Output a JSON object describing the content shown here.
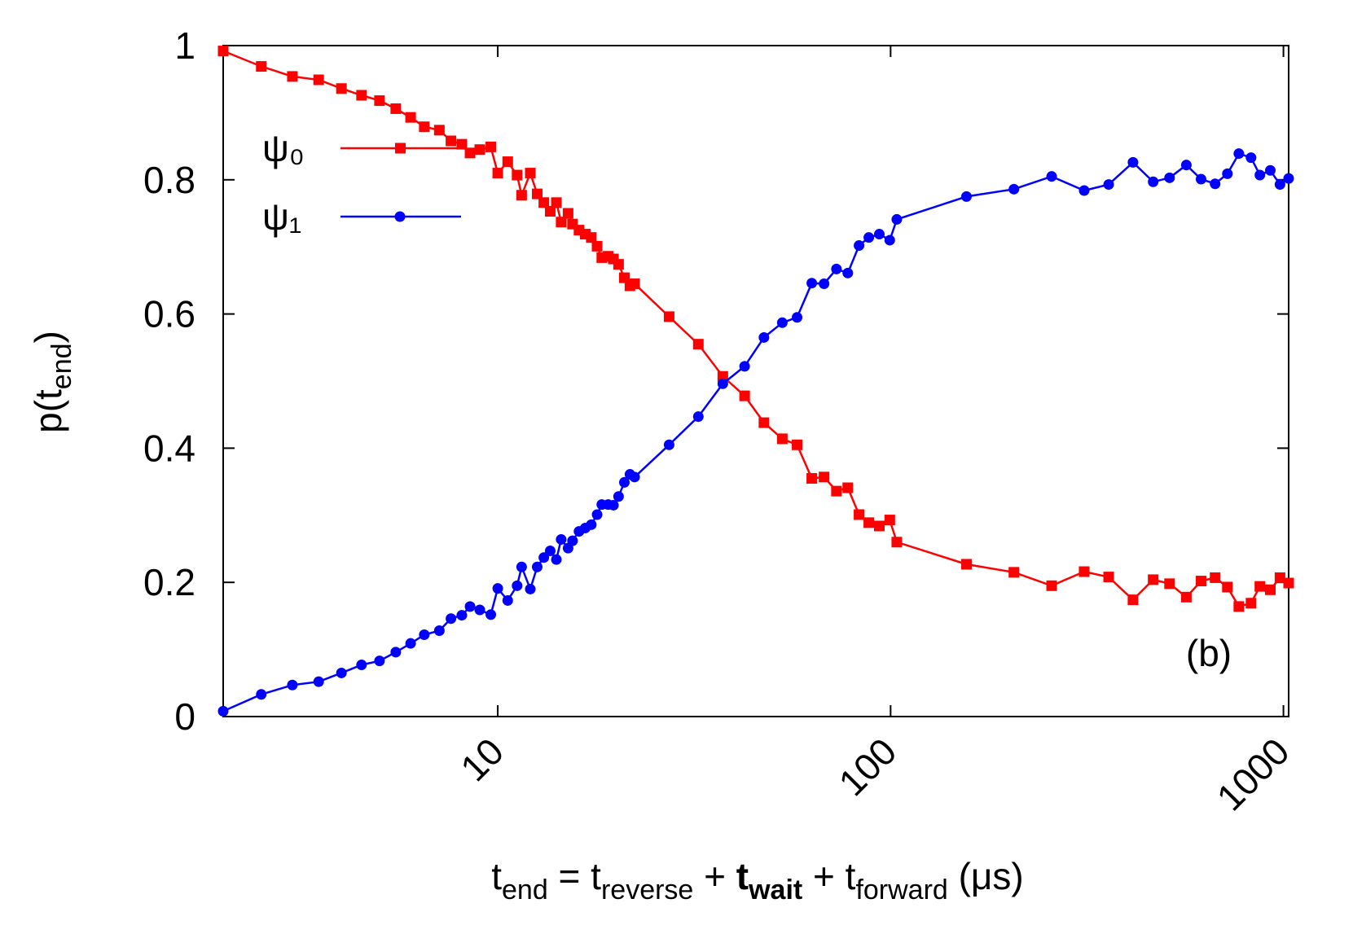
{
  "chart_data": {
    "type": "line",
    "xlabel": [
      {
        "text": "t"
      },
      {
        "text": "end",
        "sub": true
      },
      {
        "text": " = t"
      },
      {
        "text": "reverse",
        "sub": true
      },
      {
        "text": " + "
      },
      {
        "text": "t",
        "bold": true
      },
      {
        "text": "wait",
        "sub": true,
        "bold": true
      },
      {
        "text": " + t"
      },
      {
        "text": "forward",
        "sub": true
      },
      {
        "text": " (μs)"
      }
    ],
    "ylabel": [
      {
        "text": "p(t"
      },
      {
        "text": "end",
        "sub": true
      },
      {
        "text": ")"
      }
    ],
    "annotation": "(b)",
    "xscale": "log",
    "xlim": [
      2,
      1031
    ],
    "xticks": [
      10,
      100,
      1000
    ],
    "ylim": [
      0,
      1
    ],
    "yticks": [
      0,
      0.2,
      0.4,
      0.6,
      0.8,
      1
    ],
    "legend": "upper left",
    "x": [
      2,
      2.5,
      3,
      3.5,
      4,
      4.5,
      5,
      5.5,
      6,
      6.5,
      7.1,
      7.6,
      8.1,
      8.5,
      9,
      9.6,
      10,
      10.6,
      11.2,
      11.5,
      12.1,
      12.6,
      13.1,
      13.6,
      14.1,
      14.5,
      15.1,
      15.5,
      16.1,
      16.7,
      17.3,
      17.9,
      18.4,
      19.1,
      19.7,
      20.3,
      21,
      21.7,
      22.3,
      27.3,
      32.4,
      37.4,
      42.5,
      47.6,
      53,
      57.8,
      63,
      67.7,
      72.8,
      77.8,
      83.1,
      88,
      93.6,
      99.5,
      103.7,
      156,
      206,
      257,
      311,
      359,
      414,
      466,
      513,
      566,
      617,
      670,
      720,
      770,
      827,
      871,
      926,
      980,
      1031
    ],
    "series": [
      {
        "name": "ψ₀",
        "color": "#ff0000",
        "marker": "square",
        "values": [
          0.992,
          0.969,
          0.954,
          0.949,
          0.936,
          0.926,
          0.918,
          0.906,
          0.893,
          0.879,
          0.874,
          0.858,
          0.853,
          0.84,
          0.845,
          0.849,
          0.81,
          0.827,
          0.807,
          0.777,
          0.81,
          0.779,
          0.766,
          0.753,
          0.766,
          0.737,
          0.75,
          0.734,
          0.725,
          0.719,
          0.714,
          0.701,
          0.684,
          0.686,
          0.682,
          0.674,
          0.654,
          0.642,
          0.645,
          0.596,
          0.555,
          0.507,
          0.478,
          0.438,
          0.414,
          0.405,
          0.355,
          0.357,
          0.336,
          0.341,
          0.301,
          0.289,
          0.284,
          0.293,
          0.26,
          0.227,
          0.215,
          0.195,
          0.216,
          0.208,
          0.174,
          0.204,
          0.198,
          0.178,
          0.202,
          0.207,
          0.193,
          0.164,
          0.169,
          0.194,
          0.189,
          0.207,
          0.199
        ]
      },
      {
        "name": "ψ₁",
        "color": "#0000ff",
        "marker": "circle",
        "values": [
          0.008,
          0.033,
          0.047,
          0.052,
          0.065,
          0.077,
          0.083,
          0.096,
          0.109,
          0.122,
          0.128,
          0.146,
          0.151,
          0.164,
          0.159,
          0.152,
          0.191,
          0.173,
          0.195,
          0.223,
          0.19,
          0.223,
          0.237,
          0.247,
          0.234,
          0.264,
          0.251,
          0.262,
          0.276,
          0.281,
          0.286,
          0.301,
          0.316,
          0.316,
          0.315,
          0.328,
          0.349,
          0.361,
          0.357,
          0.405,
          0.447,
          0.496,
          0.522,
          0.565,
          0.587,
          0.595,
          0.646,
          0.645,
          0.667,
          0.661,
          0.702,
          0.714,
          0.719,
          0.71,
          0.741,
          0.775,
          0.786,
          0.805,
          0.784,
          0.793,
          0.826,
          0.797,
          0.803,
          0.822,
          0.801,
          0.794,
          0.809,
          0.839,
          0.833,
          0.807,
          0.814,
          0.793,
          0.802
        ]
      }
    ]
  }
}
